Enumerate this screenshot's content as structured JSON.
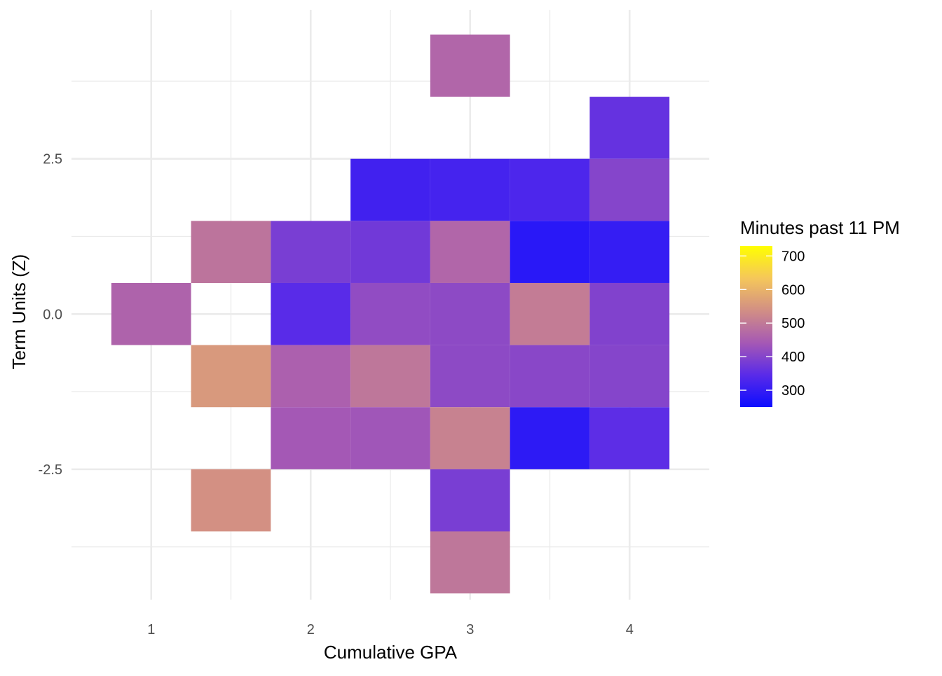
{
  "chart_data": {
    "type": "heatmap",
    "title": "",
    "xlabel": "Cumulative GPA",
    "ylabel": "Term Units (Z)",
    "xlim": [
      0.5,
      4.5
    ],
    "ylim": [
      -4.6,
      4.9
    ],
    "x_ticks": [
      {
        "value": 1,
        "label": "1"
      },
      {
        "value": 2,
        "label": "2"
      },
      {
        "value": 3,
        "label": "3"
      },
      {
        "value": 4,
        "label": "4"
      }
    ],
    "y_ticks": [
      {
        "value": -2.5,
        "label": "-2.5"
      },
      {
        "value": 0,
        "label": "0.0"
      },
      {
        "value": 2.5,
        "label": "2.5"
      }
    ],
    "grid": true,
    "bin_width_x": 0.5,
    "bin_width_y": 1.0,
    "legend": {
      "title": "Minutes past 11 PM",
      "placement": "right",
      "min": 250,
      "max": 730,
      "ticks": [
        {
          "value": 300,
          "label": "300"
        },
        {
          "value": 400,
          "label": "400"
        },
        {
          "value": 500,
          "label": "500"
        },
        {
          "value": 600,
          "label": "600"
        },
        {
          "value": 700,
          "label": "700"
        }
      ],
      "colors": [
        "#0d0dff",
        "#5a2be8",
        "#a659b4",
        "#d28f84",
        "#f5c75a",
        "#ffff00"
      ]
    },
    "cells": [
      {
        "x": 3.0,
        "y": 4.0,
        "value": 465
      },
      {
        "x": 4.0,
        "y": 3.0,
        "value": 360
      },
      {
        "x": 2.5,
        "y": 2.0,
        "value": 315
      },
      {
        "x": 3.0,
        "y": 2.0,
        "value": 320
      },
      {
        "x": 3.5,
        "y": 2.0,
        "value": 330
      },
      {
        "x": 4.0,
        "y": 2.0,
        "value": 400
      },
      {
        "x": 1.5,
        "y": 1.0,
        "value": 490
      },
      {
        "x": 2.0,
        "y": 1.0,
        "value": 385
      },
      {
        "x": 2.5,
        "y": 1.0,
        "value": 375
      },
      {
        "x": 3.0,
        "y": 1.0,
        "value": 465
      },
      {
        "x": 3.5,
        "y": 1.0,
        "value": 285
      },
      {
        "x": 4.0,
        "y": 1.0,
        "value": 300
      },
      {
        "x": 1.0,
        "y": 0.0,
        "value": 460
      },
      {
        "x": 2.0,
        "y": 0.0,
        "value": 345
      },
      {
        "x": 2.5,
        "y": 0.0,
        "value": 415
      },
      {
        "x": 3.0,
        "y": 0.0,
        "value": 410
      },
      {
        "x": 3.5,
        "y": 0.0,
        "value": 505
      },
      {
        "x": 4.0,
        "y": 0.0,
        "value": 395
      },
      {
        "x": 1.5,
        "y": -1.0,
        "value": 555
      },
      {
        "x": 2.0,
        "y": -1.0,
        "value": 455
      },
      {
        "x": 2.5,
        "y": -1.0,
        "value": 495
      },
      {
        "x": 3.0,
        "y": -1.0,
        "value": 410
      },
      {
        "x": 3.5,
        "y": -1.0,
        "value": 405
      },
      {
        "x": 4.0,
        "y": -1.0,
        "value": 400
      },
      {
        "x": 2.0,
        "y": -2.0,
        "value": 440
      },
      {
        "x": 2.5,
        "y": -2.0,
        "value": 435
      },
      {
        "x": 3.0,
        "y": -2.0,
        "value": 515
      },
      {
        "x": 3.5,
        "y": -2.0,
        "value": 290
      },
      {
        "x": 4.0,
        "y": -2.0,
        "value": 350
      },
      {
        "x": 1.5,
        "y": -3.0,
        "value": 540
      },
      {
        "x": 3.0,
        "y": -3.0,
        "value": 385
      },
      {
        "x": 3.0,
        "y": -4.0,
        "value": 495
      }
    ]
  }
}
